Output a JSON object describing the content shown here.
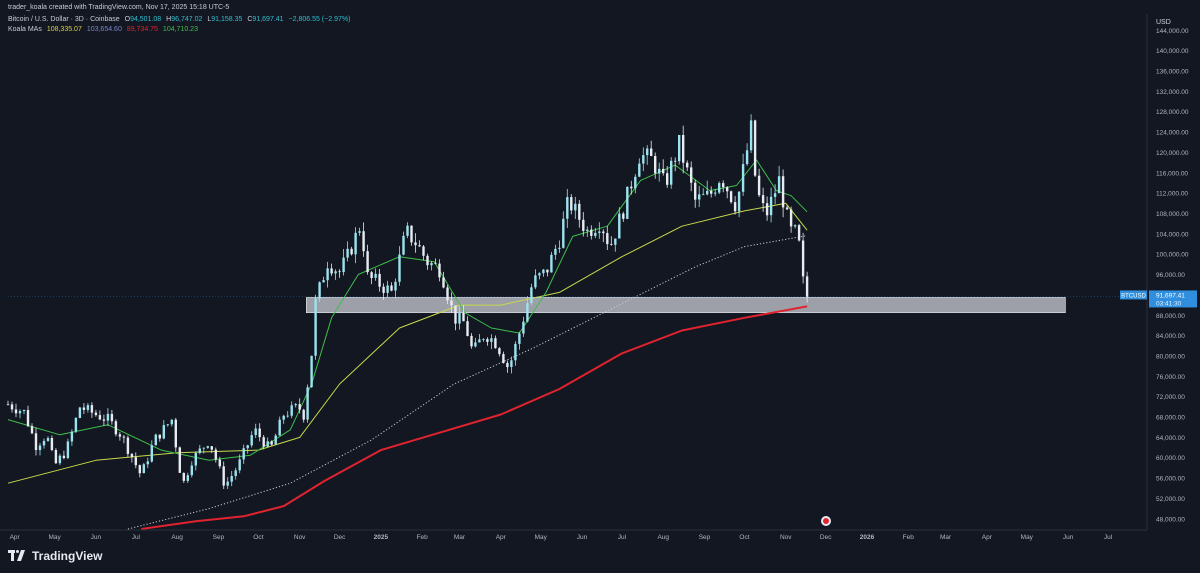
{
  "header": {
    "attribution": "trader_koala created with TradingView.com, Nov 17, 2025 15:18 UTC-5",
    "symbol_line": "Bitcoin / U.S. Dollar · 3D · Coinbase",
    "ohlc": {
      "open_label": "O",
      "open": "94,501.08",
      "high_label": "H",
      "high": "96,747.02",
      "low_label": "L",
      "low": "91,158.35",
      "close_label": "C",
      "close": "91,697.41",
      "change": "−2,806.55 (−2.97%)"
    },
    "indicator_label": "Koala MAs",
    "ma_values": [
      "108,335.07",
      "103,654.60",
      "89,734.75",
      "104,710.23"
    ]
  },
  "colors": {
    "background": "#121722",
    "up": "#9be3ee",
    "down": "#e8ecf1",
    "ma_fast": "#3fbf4a",
    "ma_mid": "#c8d84a",
    "ma_dotted": "#c7cbd4",
    "ma_slow": "#e0232e",
    "price_tag": "#2f8fde"
  },
  "chart_data": {
    "type": "candlestick",
    "y_axis_unit": "USD",
    "y_ticks": [
      "144,000.00",
      "140,000.00",
      "136,000.00",
      "132,000.00",
      "128,000.00",
      "124,000.00",
      "120,000.00",
      "116,000.00",
      "112,000.00",
      "108,000.00",
      "104,000.00",
      "100,000.00",
      "96,000.00",
      "92,000.00",
      "88,000.00",
      "84,000.00",
      "80,000.00",
      "76,000.00",
      "72,000.00",
      "68,000.00",
      "64,000.00",
      "60,000.00",
      "56,000.00",
      "52,000.00",
      "48,000.00"
    ],
    "x_ticks": [
      {
        "label": "Apr",
        "date": "2024-04-01"
      },
      {
        "label": "May",
        "date": "2024-05-01"
      },
      {
        "label": "Jun",
        "date": "2024-06-01"
      },
      {
        "label": "Jul",
        "date": "2024-07-01"
      },
      {
        "label": "Aug",
        "date": "2024-08-01"
      },
      {
        "label": "Sep",
        "date": "2024-09-01"
      },
      {
        "label": "Oct",
        "date": "2024-10-01"
      },
      {
        "label": "Nov",
        "date": "2024-11-01"
      },
      {
        "label": "Dec",
        "date": "2024-12-01"
      },
      {
        "label": "2025",
        "date": "2025-01-01",
        "bold": true
      },
      {
        "label": "Feb",
        "date": "2025-02-01"
      },
      {
        "label": "Mar",
        "date": "2025-03-01"
      },
      {
        "label": "Apr",
        "date": "2025-04-01"
      },
      {
        "label": "May",
        "date": "2025-05-01"
      },
      {
        "label": "Jun",
        "date": "2025-06-01"
      },
      {
        "label": "Jul",
        "date": "2025-07-01"
      },
      {
        "label": "Aug",
        "date": "2025-08-01"
      },
      {
        "label": "Sep",
        "date": "2025-09-01"
      },
      {
        "label": "Oct",
        "date": "2025-10-01"
      },
      {
        "label": "Nov",
        "date": "2025-11-01"
      },
      {
        "label": "Dec",
        "date": "2025-12-01"
      },
      {
        "label": "2026",
        "date": "2026-01-01",
        "bold": true
      },
      {
        "label": "Feb",
        "date": "2026-02-01"
      },
      {
        "label": "Mar",
        "date": "2026-03-01"
      },
      {
        "label": "Apr",
        "date": "2026-04-01"
      },
      {
        "label": "May",
        "date": "2026-05-01"
      },
      {
        "label": "Jun",
        "date": "2026-06-01"
      },
      {
        "label": "Jul",
        "date": "2026-07-01"
      }
    ],
    "x_range": [
      "2024-03-27",
      "2026-07-25"
    ],
    "y_range": [
      45800,
      147200
    ],
    "support_zone": {
      "from": "2024-11-06",
      "to": "2026-05-30",
      "low": 88500,
      "high": 91500
    },
    "price_label": {
      "symbol": "BTCUSD",
      "price": "91,697.41",
      "countdown": "03:41:30",
      "value": 91697.41
    },
    "closes": [
      {
        "date": "2024-03-27",
        "c": 70500
      },
      {
        "date": "2024-04-08",
        "c": 69000
      },
      {
        "date": "2024-04-17",
        "c": 62500
      },
      {
        "date": "2024-04-25",
        "c": 64500
      },
      {
        "date": "2024-05-01",
        "c": 58500
      },
      {
        "date": "2024-05-10",
        "c": 61500
      },
      {
        "date": "2024-05-20",
        "c": 70000
      },
      {
        "date": "2024-06-01",
        "c": 68500
      },
      {
        "date": "2024-06-10",
        "c": 67500
      },
      {
        "date": "2024-06-20",
        "c": 64500
      },
      {
        "date": "2024-07-05",
        "c": 56500
      },
      {
        "date": "2024-07-15",
        "c": 63500
      },
      {
        "date": "2024-07-28",
        "c": 67500
      },
      {
        "date": "2024-08-05",
        "c": 54500
      },
      {
        "date": "2024-08-12",
        "c": 59500
      },
      {
        "date": "2024-08-25",
        "c": 63500
      },
      {
        "date": "2024-09-06",
        "c": 54500
      },
      {
        "date": "2024-09-16",
        "c": 58500
      },
      {
        "date": "2024-09-28",
        "c": 65500
      },
      {
        "date": "2024-10-10",
        "c": 61500
      },
      {
        "date": "2024-10-20",
        "c": 68500
      },
      {
        "date": "2024-10-31",
        "c": 70000
      },
      {
        "date": "2024-11-04",
        "c": 68500
      },
      {
        "date": "2024-11-10",
        "c": 80500
      },
      {
        "date": "2024-11-13",
        "c": 90500
      },
      {
        "date": "2024-11-22",
        "c": 98500
      },
      {
        "date": "2024-12-01",
        "c": 96500
      },
      {
        "date": "2024-12-07",
        "c": 99500
      },
      {
        "date": "2024-12-17",
        "c": 106000
      },
      {
        "date": "2024-12-22",
        "c": 95500
      },
      {
        "date": "2025-01-01",
        "c": 94000
      },
      {
        "date": "2025-01-09",
        "c": 92500
      },
      {
        "date": "2025-01-20",
        "c": 104500
      },
      {
        "date": "2025-01-28",
        "c": 102000
      },
      {
        "date": "2025-02-05",
        "c": 98500
      },
      {
        "date": "2025-02-15",
        "c": 97000
      },
      {
        "date": "2025-02-25",
        "c": 87500
      },
      {
        "date": "2025-03-05",
        "c": 86500
      },
      {
        "date": "2025-03-11",
        "c": 80500
      },
      {
        "date": "2025-03-20",
        "c": 84500
      },
      {
        "date": "2025-03-29",
        "c": 82500
      },
      {
        "date": "2025-04-07",
        "c": 77500
      },
      {
        "date": "2025-04-15",
        "c": 84500
      },
      {
        "date": "2025-04-25",
        "c": 94500
      },
      {
        "date": "2025-05-05",
        "c": 96500
      },
      {
        "date": "2025-05-15",
        "c": 103000
      },
      {
        "date": "2025-05-22",
        "c": 110500
      },
      {
        "date": "2025-06-05",
        "c": 104500
      },
      {
        "date": "2025-06-15",
        "c": 106500
      },
      {
        "date": "2025-06-22",
        "c": 101500
      },
      {
        "date": "2025-07-03",
        "c": 109500
      },
      {
        "date": "2025-07-14",
        "c": 119500
      },
      {
        "date": "2025-07-24",
        "c": 118500
      },
      {
        "date": "2025-08-02",
        "c": 113500
      },
      {
        "date": "2025-08-13",
        "c": 121500
      },
      {
        "date": "2025-08-25",
        "c": 110500
      },
      {
        "date": "2025-09-05",
        "c": 111500
      },
      {
        "date": "2025-09-13",
        "c": 115500
      },
      {
        "date": "2025-09-25",
        "c": 109500
      },
      {
        "date": "2025-10-06",
        "c": 124500
      },
      {
        "date": "2025-10-10",
        "c": 112500
      },
      {
        "date": "2025-10-17",
        "c": 107500
      },
      {
        "date": "2025-10-27",
        "c": 114500
      },
      {
        "date": "2025-11-04",
        "c": 104500
      },
      {
        "date": "2025-11-10",
        "c": 104000
      },
      {
        "date": "2025-11-14",
        "c": 94500
      },
      {
        "date": "2025-11-17",
        "c": 91697
      }
    ],
    "ma_lines": [
      {
        "id": "ma_fast",
        "points": [
          [
            "2024-03-27",
            67500
          ],
          [
            "2024-05-05",
            64500
          ],
          [
            "2024-06-10",
            66500
          ],
          [
            "2024-07-20",
            61500
          ],
          [
            "2024-08-25",
            59500
          ],
          [
            "2024-09-25",
            60500
          ],
          [
            "2024-10-25",
            65500
          ],
          [
            "2024-11-10",
            74500
          ],
          [
            "2024-11-25",
            87500
          ],
          [
            "2024-12-15",
            96000
          ],
          [
            "2025-01-15",
            99500
          ],
          [
            "2025-02-10",
            98500
          ],
          [
            "2025-03-05",
            88500
          ],
          [
            "2025-03-25",
            85500
          ],
          [
            "2025-04-15",
            84500
          ],
          [
            "2025-05-05",
            92500
          ],
          [
            "2025-05-25",
            103500
          ],
          [
            "2025-06-20",
            105500
          ],
          [
            "2025-07-15",
            114500
          ],
          [
            "2025-08-10",
            117500
          ],
          [
            "2025-09-05",
            112500
          ],
          [
            "2025-09-25",
            113500
          ],
          [
            "2025-10-10",
            118500
          ],
          [
            "2025-10-25",
            112500
          ],
          [
            "2025-11-05",
            111500
          ],
          [
            "2025-11-17",
            108335
          ]
        ]
      },
      {
        "id": "ma_mid",
        "points": [
          [
            "2024-03-27",
            55000
          ],
          [
            "2024-06-01",
            59500
          ],
          [
            "2024-08-01",
            61000
          ],
          [
            "2024-10-01",
            61500
          ],
          [
            "2024-11-01",
            64000
          ],
          [
            "2024-12-01",
            74500
          ],
          [
            "2025-01-15",
            85500
          ],
          [
            "2025-03-01",
            90000
          ],
          [
            "2025-04-01",
            90000
          ],
          [
            "2025-05-15",
            92500
          ],
          [
            "2025-07-01",
            99500
          ],
          [
            "2025-08-15",
            105500
          ],
          [
            "2025-10-01",
            108500
          ],
          [
            "2025-11-01",
            110000
          ],
          [
            "2025-11-17",
            104710
          ]
        ]
      },
      {
        "id": "ma_dotted",
        "points": [
          [
            "2024-06-25",
            46000
          ],
          [
            "2024-08-25",
            50000
          ],
          [
            "2024-10-25",
            55000
          ],
          [
            "2024-12-25",
            63500
          ],
          [
            "2025-02-25",
            74500
          ],
          [
            "2025-04-25",
            81500
          ],
          [
            "2025-06-25",
            89500
          ],
          [
            "2025-08-25",
            97500
          ],
          [
            "2025-10-01",
            101500
          ],
          [
            "2025-11-17",
            103655
          ]
        ]
      },
      {
        "id": "ma_slow",
        "points": [
          [
            "2024-07-05",
            46000
          ],
          [
            "2024-08-15",
            47500
          ],
          [
            "2024-09-20",
            48500
          ],
          [
            "2024-10-20",
            50500
          ],
          [
            "2024-11-20",
            55500
          ],
          [
            "2025-01-01",
            61500
          ],
          [
            "2025-02-15",
            65000
          ],
          [
            "2025-04-01",
            68500
          ],
          [
            "2025-05-15",
            73500
          ],
          [
            "2025-07-01",
            80500
          ],
          [
            "2025-08-15",
            85000
          ],
          [
            "2025-10-01",
            87500
          ],
          [
            "2025-11-17",
            89735
          ]
        ]
      }
    ]
  },
  "branding": {
    "name": "TradingView"
  }
}
